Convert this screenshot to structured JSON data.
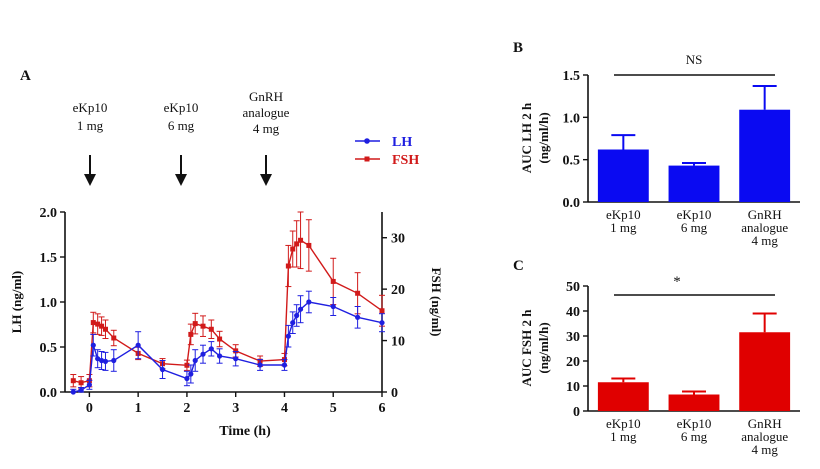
{
  "panel_labels": {
    "a": "A",
    "b": "B",
    "c": "C"
  },
  "annotations": {
    "dose1": [
      "eKp10",
      "1 mg"
    ],
    "dose2": [
      "eKp10",
      "6 mg"
    ],
    "dose3": [
      "GnRH",
      "analogue",
      "4 mg"
    ]
  },
  "colors": {
    "lh": "#1f1fe0",
    "fsh": "#d11a1a",
    "bar_blue": "#0a0af2",
    "bar_red": "#e00000",
    "axis": "#111111"
  },
  "chart_data": [
    {
      "id": "panel-a",
      "type": "line",
      "xlabel": "Time (h)",
      "ylabel": "LH (ng/ml)",
      "y2label": "FSH (ng/ml)",
      "xlim": [
        -0.5,
        6
      ],
      "xticks": [
        0,
        1,
        2,
        3,
        4,
        5,
        6
      ],
      "ylim": [
        0,
        2.0
      ],
      "yticks": [
        "0.0",
        "0.5",
        "1.0",
        "1.5",
        "2.0"
      ],
      "y2lim": [
        0,
        35
      ],
      "y2ticks": [
        0,
        10,
        20,
        30
      ],
      "legend": {
        "position": "top-right",
        "entries": [
          "LH",
          "FSH"
        ]
      },
      "series": [
        {
          "name": "LH",
          "axis": "left",
          "x": [
            -0.33,
            -0.17,
            0,
            0.08,
            0.17,
            0.25,
            0.33,
            0.5,
            1,
            1.5,
            2,
            2.08,
            2.17,
            2.33,
            2.5,
            2.67,
            3,
            3.5,
            4,
            4.08,
            4.17,
            4.25,
            4.33,
            4.5,
            5,
            5.5,
            6
          ],
          "y": [
            0.0,
            0.02,
            0.08,
            0.52,
            0.37,
            0.35,
            0.34,
            0.35,
            0.52,
            0.25,
            0.15,
            0.2,
            0.35,
            0.42,
            0.48,
            0.4,
            0.37,
            0.3,
            0.3,
            0.62,
            0.77,
            0.85,
            0.92,
            1.0,
            0.95,
            0.83,
            0.77
          ],
          "err": [
            0.03,
            0.03,
            0.05,
            0.12,
            0.1,
            0.1,
            0.1,
            0.12,
            0.15,
            0.1,
            0.08,
            0.1,
            0.12,
            0.1,
            0.08,
            0.08,
            0.08,
            0.06,
            0.06,
            0.12,
            0.12,
            0.12,
            0.15,
            0.12,
            0.1,
            0.12,
            0.1
          ]
        },
        {
          "name": "FSH",
          "axis": "right",
          "x": [
            -0.33,
            -0.17,
            0,
            0.08,
            0.17,
            0.25,
            0.33,
            0.5,
            1,
            1.5,
            2,
            2.08,
            2.17,
            2.33,
            2.5,
            2.67,
            3,
            3.5,
            4,
            4.08,
            4.17,
            4.25,
            4.33,
            4.5,
            5,
            5.5,
            6
          ],
          "y": [
            2.2,
            1.8,
            2.2,
            13.5,
            13.2,
            12.8,
            12.2,
            10.5,
            7.5,
            5.5,
            5.2,
            11.2,
            13.3,
            12.8,
            12.2,
            10.3,
            8.0,
            6.0,
            6.3,
            24.5,
            27.8,
            28.8,
            29.5,
            28.5,
            21.5,
            19.2,
            15.8
          ],
          "err": [
            1.2,
            1.2,
            1.2,
            2.0,
            2.0,
            1.8,
            1.8,
            1.5,
            1.2,
            1.0,
            1.0,
            2.0,
            2.0,
            2.0,
            1.8,
            1.5,
            1.2,
            1.0,
            1.2,
            4.0,
            3.5,
            4.5,
            5.5,
            5.0,
            4.5,
            4.0,
            3.0
          ]
        }
      ]
    },
    {
      "id": "panel-b",
      "type": "bar",
      "ylabel_lines": [
        "AUC LH 2 h",
        "(ng/ml/h)"
      ],
      "categories": [
        [
          "eKp10",
          "1 mg"
        ],
        [
          "eKp10",
          "6 mg"
        ],
        [
          "GnRH",
          "analogue",
          "4 mg"
        ]
      ],
      "values": [
        0.62,
        0.43,
        1.09
      ],
      "err": [
        0.17,
        0.03,
        0.28
      ],
      "ylim": [
        0,
        1.5
      ],
      "yticks": [
        "0.0",
        "0.5",
        "1.0",
        "1.5"
      ],
      "significance": "NS"
    },
    {
      "id": "panel-c",
      "type": "bar",
      "ylabel_lines": [
        "AUC FSH 2 h",
        "(ng/ml/h)"
      ],
      "categories": [
        [
          "eKp10",
          "1 mg"
        ],
        [
          "eKp10",
          "6 mg"
        ],
        [
          "GnRH",
          "analogue",
          "4 mg"
        ]
      ],
      "values": [
        11.5,
        6.6,
        31.5
      ],
      "err": [
        1.5,
        1.2,
        7.5
      ],
      "ylim": [
        0,
        50
      ],
      "yticks": [
        0,
        10,
        20,
        30,
        40,
        50
      ],
      "significance": "*"
    }
  ]
}
